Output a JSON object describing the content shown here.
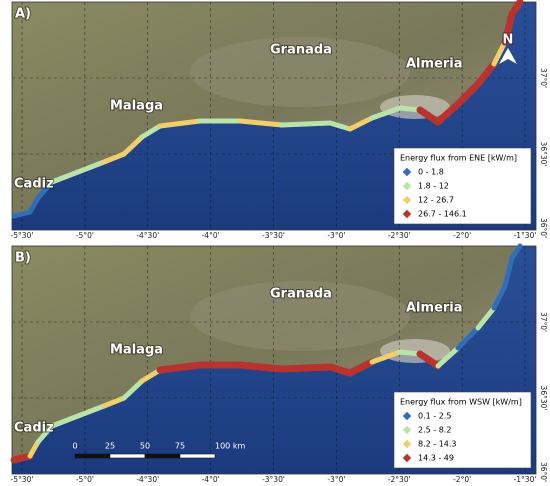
{
  "panels": [
    {
      "label": "A)",
      "north": "N",
      "places": [
        "Granada",
        "Almeria",
        "Malaga",
        "Cadiz"
      ],
      "x_ticks": [
        "-5°30'",
        "-5°0'",
        "-4°30'",
        "-4°0'",
        "-3°30'",
        "-3°0'",
        "-2°30'",
        "-2°0'",
        "-1°30'"
      ],
      "y_ticks": [
        "37°0'",
        "36°30'",
        "36°0'"
      ],
      "legend": {
        "title": "Energy flux from ENE [kW/m]",
        "items": [
          {
            "label": "0 - 1.8",
            "color": "#2f6fb8"
          },
          {
            "label": "1.8 - 12",
            "color": "#b9e3a8"
          },
          {
            "label": "12 - 26.7",
            "color": "#efcf6a"
          },
          {
            "label": "26.7 - 146.1",
            "color": "#b8332e"
          }
        ]
      }
    },
    {
      "label": "B)",
      "places": [
        "Granada",
        "Almeria",
        "Malaga",
        "Cadiz"
      ],
      "x_ticks": [
        "-5°30'",
        "-5°0'",
        "-4°30'",
        "-4°0'",
        "-3°30'",
        "-3°0'",
        "-2°30'",
        "-2°0'",
        "-1°30'"
      ],
      "y_ticks": [
        "37°0'",
        "36°30'",
        "36°0'"
      ],
      "legend": {
        "title": "Energy flux from WSW [kW/m]",
        "items": [
          {
            "label": "0.1 - 2.5",
            "color": "#2f6fb8"
          },
          {
            "label": "2.5 - 8.2",
            "color": "#b9e3a8"
          },
          {
            "label": "8.2 - 14.3",
            "color": "#efcf6a"
          },
          {
            "label": "14.3 - 49",
            "color": "#b8332e"
          }
        ]
      },
      "scale_bar": [
        "0",
        "25",
        "50",
        "75",
        "100 km"
      ]
    }
  ]
}
